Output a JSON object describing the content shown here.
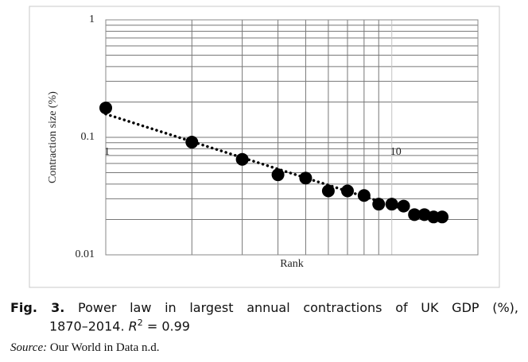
{
  "chart_data": {
    "type": "scatter",
    "x_label": "Rank",
    "y_label": "Contraction size (%)",
    "x": [
      1,
      2,
      3,
      4,
      5,
      6,
      7,
      8,
      9,
      10,
      11,
      12,
      13,
      14,
      15
    ],
    "values": [
      0.178,
      0.091,
      0.065,
      0.048,
      0.045,
      0.035,
      0.035,
      0.032,
      0.027,
      0.027,
      0.026,
      0.022,
      0.022,
      0.021,
      0.021
    ],
    "color": "#000000",
    "trendline": "power",
    "trendline_color": "#000000",
    "xlim": [
      1,
      20
    ],
    "xticks": [
      1,
      10
    ],
    "x_minor_ticks": [
      2,
      3,
      4,
      5,
      6,
      7,
      8,
      9
    ],
    "ylim": [
      0.01,
      1
    ],
    "yticks": [
      0.01,
      0.1,
      1
    ],
    "y_minor_ticks": [
      0.02,
      0.03,
      0.04,
      0.05,
      0.06,
      0.07,
      0.08,
      0.09,
      0.2,
      0.3,
      0.4,
      0.5,
      0.6,
      0.7,
      0.8,
      0.9
    ],
    "xlog": true,
    "ylog": true,
    "grid": true
  },
  "caption": {
    "label": "Fig. 3.",
    "text": "Power law in largest annual contractions of UK GDP (%),",
    "period": "1870–2014.",
    "r2_var": "R",
    "r2_sup": "2",
    "r2_eq": "= 0.99"
  },
  "source": {
    "label": "Source:",
    "text": "Our World in Data n.d."
  }
}
